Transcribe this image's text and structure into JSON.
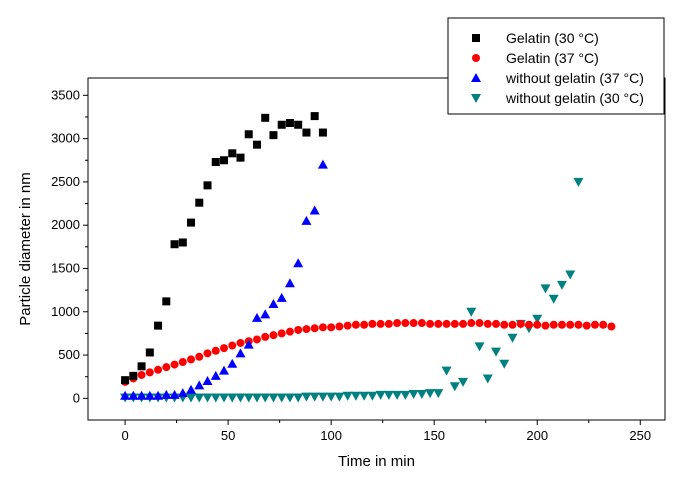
{
  "chart_data": {
    "type": "scatter",
    "xlabel": "Time in min",
    "ylabel": "Particle diameter in nm",
    "xlim": [
      -18,
      262
    ],
    "ylim": [
      -250,
      3700
    ],
    "xticks": [
      0,
      50,
      100,
      150,
      200,
      250
    ],
    "yticks": [
      0,
      500,
      1000,
      1500,
      2000,
      2500,
      3000,
      3500
    ],
    "grid": false,
    "legend_position": "top-right",
    "series": [
      {
        "name": "Gelatin (30 °C)",
        "marker": "square",
        "color": "#000000",
        "x": [
          0,
          4,
          8,
          12,
          16,
          20,
          24,
          28,
          32,
          36,
          40,
          44,
          48,
          52,
          56,
          60,
          64,
          68,
          72,
          76,
          80,
          84,
          88,
          92,
          96
        ],
        "y": [
          210,
          260,
          370,
          530,
          840,
          1120,
          1780,
          1800,
          2030,
          2260,
          2460,
          2730,
          2750,
          2830,
          2780,
          3050,
          2930,
          3240,
          3040,
          3160,
          3180,
          3160,
          3070,
          3260,
          3070
        ]
      },
      {
        "name": "Gelatin (37 °C)",
        "marker": "circle",
        "color": "#ff0000",
        "x": [
          0,
          4,
          8,
          12,
          16,
          20,
          24,
          28,
          32,
          36,
          40,
          44,
          48,
          52,
          56,
          60,
          64,
          68,
          72,
          76,
          80,
          84,
          88,
          92,
          96,
          100,
          104,
          108,
          112,
          116,
          120,
          124,
          128,
          132,
          136,
          140,
          144,
          148,
          152,
          156,
          160,
          164,
          168,
          172,
          176,
          180,
          184,
          188,
          192,
          196,
          200,
          204,
          208,
          212,
          216,
          220,
          224,
          228,
          232,
          236
        ],
        "y": [
          190,
          230,
          270,
          300,
          330,
          360,
          390,
          420,
          450,
          480,
          520,
          550,
          580,
          610,
          640,
          660,
          680,
          710,
          730,
          750,
          770,
          790,
          800,
          810,
          820,
          820,
          830,
          840,
          850,
          850,
          860,
          860,
          860,
          870,
          870,
          870,
          870,
          860,
          860,
          860,
          860,
          860,
          870,
          870,
          860,
          860,
          850,
          850,
          860,
          850,
          850,
          840,
          850,
          850,
          850,
          850,
          840,
          850,
          850,
          830
        ]
      },
      {
        "name": "without gelatin (37 °C)",
        "marker": "triangle-up",
        "color": "#0000ff",
        "x": [
          0,
          4,
          8,
          12,
          16,
          20,
          24,
          28,
          32,
          36,
          40,
          44,
          48,
          52,
          56,
          60,
          64,
          68,
          72,
          76,
          80,
          84,
          88,
          92,
          96
        ],
        "y": [
          30,
          30,
          30,
          30,
          30,
          40,
          40,
          60,
          100,
          150,
          200,
          260,
          320,
          400,
          520,
          620,
          930,
          970,
          1090,
          1160,
          1330,
          1560,
          2050,
          2170,
          2700
        ]
      },
      {
        "name": "without gelatin (30 °C)",
        "marker": "triangle-down",
        "color": "#008080",
        "x": [
          0,
          4,
          8,
          12,
          16,
          20,
          24,
          28,
          32,
          36,
          40,
          44,
          48,
          52,
          56,
          60,
          64,
          68,
          72,
          76,
          80,
          84,
          88,
          92,
          96,
          100,
          104,
          108,
          112,
          116,
          120,
          124,
          128,
          132,
          136,
          140,
          144,
          148,
          152,
          156,
          160,
          164,
          168,
          172,
          176,
          180,
          184,
          188,
          192,
          196,
          200,
          204,
          208,
          212,
          216,
          220
        ],
        "y": [
          10,
          10,
          10,
          10,
          10,
          10,
          10,
          10,
          10,
          10,
          10,
          10,
          10,
          10,
          10,
          10,
          10,
          10,
          10,
          10,
          10,
          10,
          20,
          20,
          20,
          20,
          20,
          30,
          30,
          30,
          30,
          40,
          40,
          40,
          40,
          50,
          50,
          60,
          60,
          320,
          140,
          190,
          1000,
          600,
          230,
          540,
          400,
          700,
          860,
          810,
          920,
          1270,
          1150,
          1310,
          1430,
          2500
        ]
      }
    ]
  }
}
